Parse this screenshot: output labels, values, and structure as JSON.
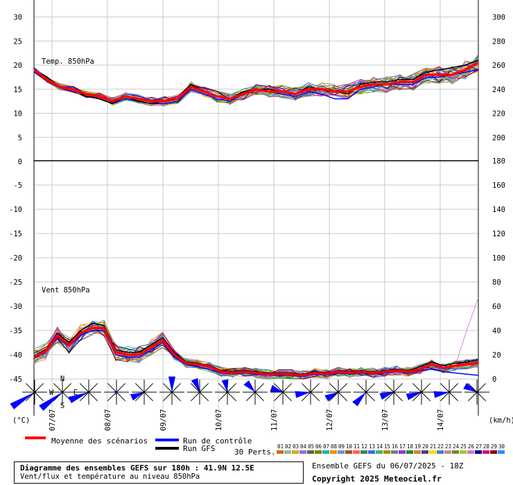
{
  "chart_data": {
    "type": "line",
    "panels": [
      {
        "label": "Temp. 850hPa",
        "unit": "°C",
        "left_axis_ticks": [
          30,
          25,
          20,
          15,
          10,
          5,
          0
        ],
        "right_axis_ticks": [
          300,
          280,
          260,
          240,
          220,
          200
        ],
        "series": [
          {
            "name": "Moyenne des scénarios",
            "values": [
              19,
              17,
              15.5,
              15,
              14,
              13.5,
              12.5,
              13.5,
              13,
              12.5,
              12.5,
              13,
              15.5,
              14.5,
              13.5,
              13,
              14,
              15,
              14.5,
              14.5,
              14,
              15,
              15,
              14.5,
              14.5,
              15.5,
              16,
              16,
              16.5,
              16.5,
              18,
              18,
              18,
              19,
              20.5
            ]
          },
          {
            "name": "Run de contrôle",
            "values": [
              18.5,
              17,
              15.5,
              15.5,
              14,
              13,
              12,
              13,
              12.5,
              12,
              12,
              12.5,
              15,
              14,
              13,
              12.5,
              14,
              15,
              14.5,
              14,
              13.5,
              14.5,
              14,
              13,
              13,
              15,
              15.5,
              16,
              16,
              16,
              17.5,
              17.5,
              18,
              18.5,
              19
            ]
          },
          {
            "name": "Run GFS",
            "values": [
              19,
              17.5,
              15.5,
              15,
              13.5,
              13,
              12,
              13.5,
              12.5,
              12,
              12.5,
              13,
              16,
              14.5,
              13.5,
              13,
              14.5,
              15,
              15,
              14.5,
              14,
              15.5,
              15,
              14.5,
              14,
              16,
              16.5,
              16.5,
              17,
              17,
              18.5,
              19,
              19.5,
              20,
              21
            ]
          }
        ]
      },
      {
        "label": "Vent 850hPa",
        "unit": "km/h",
        "left_axis_ticks": [
          -5,
          -10,
          -15,
          -20,
          -25,
          -30,
          -35,
          -40,
          -45
        ],
        "right_axis_ticks": [
          180,
          160,
          140,
          120,
          100,
          80,
          60,
          40,
          20,
          0
        ],
        "series": [
          {
            "name": "Moyenne des scénarios",
            "values": [
              18,
              23,
              36,
              28,
              38,
              42,
              42,
              22,
              20,
              20,
              26,
              32,
              20,
              13,
              12,
              10,
              6,
              5,
              6,
              5,
              4,
              4,
              4,
              3,
              5,
              4,
              6,
              5,
              6,
              5,
              6,
              7,
              6,
              8,
              12,
              9,
              11,
              12,
              13
            ]
          },
          {
            "name": "Run de contrôle",
            "values": [
              17,
              22,
              34,
              27,
              36,
              40,
              40,
              20,
              18,
              18,
              24,
              30,
              18,
              12,
              10,
              8,
              5,
              4,
              5,
              4,
              3,
              3,
              3,
              2,
              4,
              3,
              5,
              4,
              5,
              4,
              5,
              6,
              5,
              7,
              8,
              6,
              5,
              4,
              3
            ]
          },
          {
            "name": "Run GFS",
            "values": [
              19,
              24,
              38,
              30,
              40,
              46,
              44,
              24,
              22,
              22,
              28,
              34,
              22,
              14,
              13,
              11,
              7,
              6,
              7,
              6,
              5,
              5,
              5,
              4,
              6,
              5,
              7,
              6,
              7,
              6,
              7,
              8,
              7,
              10,
              14,
              11,
              13,
              14,
              16
            ]
          }
        ]
      }
    ],
    "x_ticks": [
      "07/07",
      "08/07",
      "09/07",
      "10/07",
      "11/07",
      "12/07",
      "13/07",
      "14/07"
    ],
    "unit_left": "(°C)",
    "unit_right": "(km/h)",
    "legend": [
      "Moyenne des scénarios",
      "Run de contrôle",
      "Run GFS"
    ],
    "colors": {
      "mean": "#ff0000",
      "control": "#0000ff",
      "gfs": "#000000"
    }
  },
  "perts": {
    "label": "30 Perts.",
    "numbers": [
      "01",
      "02",
      "03",
      "04",
      "05",
      "06",
      "07",
      "08",
      "09",
      "10",
      "11",
      "12",
      "13",
      "14",
      "15",
      "16",
      "17",
      "18",
      "19",
      "20",
      "21",
      "22",
      "23",
      "24",
      "25",
      "26",
      "27",
      "28",
      "29",
      "30"
    ],
    "colors": [
      "#d2691e",
      "#8fbc8f",
      "#daa520",
      "#9370db",
      "#556b2f",
      "#808000",
      "#20b2aa",
      "#ff8c00",
      "#6495ed",
      "#a0522d",
      "#ff6347",
      "#2e8b57",
      "#4169e1",
      "#3cb371",
      "#b8860b",
      "#708090",
      "#9932cc",
      "#228b22",
      "#cd853f",
      "#483d8b",
      "#ffd700",
      "#4682b4",
      "#bc8f8f",
      "#6b8e23",
      "#9acd32",
      "#da70d6",
      "#000080",
      "#c71585",
      "#8b0000",
      "#1e90ff"
    ]
  },
  "info": {
    "title": "Diagramme des ensembles GEFS sur 180h : 41.9N 12.5E",
    "subtitle": "Vent/flux et température au niveau 850hPa",
    "run": "Ensemble GEFS du 06/07/2025 - 18Z",
    "copyright": "Copyright 2025 Meteociel.fr"
  },
  "compass": {
    "n": "N",
    "s": "S",
    "e": "E",
    "w": "W"
  }
}
